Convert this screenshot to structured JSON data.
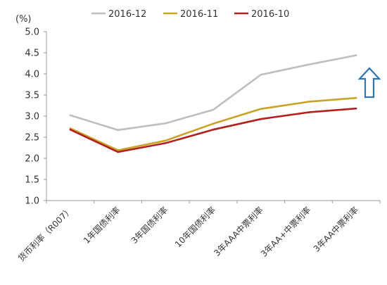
{
  "chart_data": {
    "type": "line",
    "unit_label": "(%)",
    "ylim": [
      1.0,
      5.0
    ],
    "yticks": [
      "1.0",
      "1.5",
      "2.0",
      "2.5",
      "3.0",
      "3.5",
      "4.0",
      "4.5",
      "5.0"
    ],
    "categories": [
      "货币利率（R007）",
      "1年国债利率",
      "3年国债利率",
      "10年国债利率",
      "3年AAA中票利率",
      "3年AA+中票利率",
      "3年AA中票利率"
    ],
    "series": [
      {
        "name": "2016-12",
        "color": "#bfbfbf",
        "values": [
          3.02,
          2.67,
          2.83,
          3.15,
          3.98,
          4.22,
          4.44
        ]
      },
      {
        "name": "2016-11",
        "color": "#c9a227",
        "values": [
          2.71,
          2.19,
          2.42,
          2.82,
          3.17,
          3.34,
          3.43
        ]
      },
      {
        "name": "2016-10",
        "color": "#b41f1f",
        "values": [
          2.68,
          2.15,
          2.36,
          2.68,
          2.93,
          3.09,
          3.18
        ]
      }
    ],
    "legend_position": "top",
    "grid": false,
    "annotation_icon": "up-arrow-icon",
    "annotation_color": "#2e75b6"
  }
}
